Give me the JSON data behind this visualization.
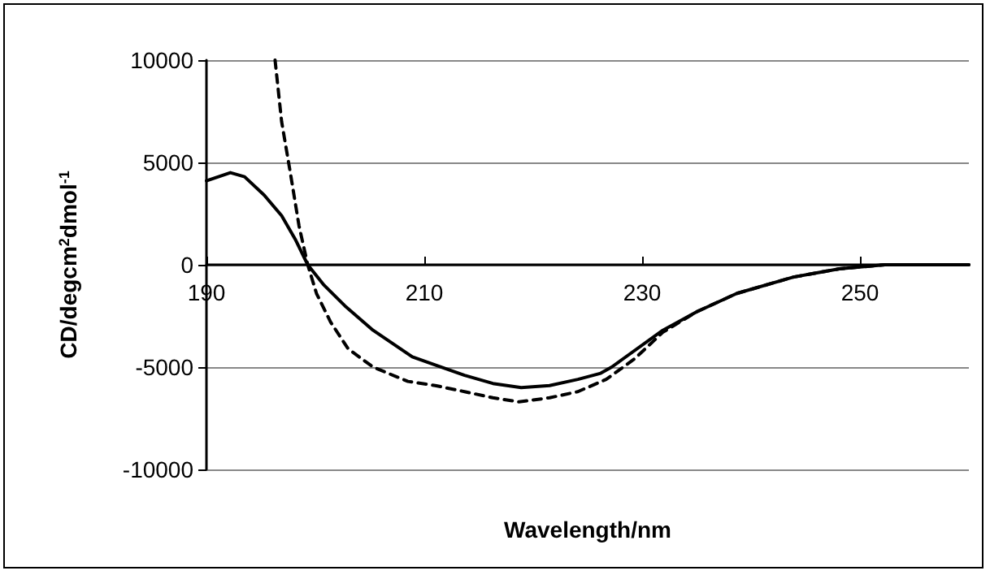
{
  "chart_data": {
    "type": "line",
    "xlabel": "Wavelength/nm",
    "ylabel": "CD/degcm$^{2}$dmol$^{-1}$",
    "xlim": [
      190,
      260
    ],
    "xticks": [
      190,
      210,
      230,
      250
    ],
    "ylim": [
      -10000,
      10000
    ],
    "yticks": [
      -10000,
      -5000,
      0,
      5000,
      10000
    ],
    "grid": "y",
    "marker": "none",
    "series": [
      {
        "color": "#000000",
        "line_style": "solid",
        "x": [
          190,
          192.2,
          193.5,
          195.3,
          196.9,
          198.2,
          199.3,
          200.8,
          202.7,
          205.3,
          208.9,
          211,
          213.7,
          216.3,
          218.9,
          221.5,
          224.1,
          226.2,
          227.2,
          231.9,
          235,
          238.7,
          243.9,
          248.1,
          252.3,
          260
        ],
        "values": [
          4100,
          4500,
          4300,
          3400,
          2400,
          1200,
          0,
          -1000,
          -2000,
          -3200,
          -4500,
          -4900,
          -5400,
          -5800,
          -6000,
          -5900,
          -5600,
          -5300,
          -5000,
          -3200,
          -2300,
          -1400,
          -600,
          -200,
          0,
          0
        ]
      },
      {
        "color": "#000000",
        "line_style": "dashed",
        "x": [
          196.3,
          196.9,
          197.7,
          198.5,
          199.3,
          200.1,
          201.4,
          203,
          205.3,
          208.5,
          211,
          213.7,
          216.3,
          218.7,
          221.5,
          224.1,
          226.7,
          229.3,
          231.9,
          235,
          238.7,
          243.9,
          248.1,
          252.3,
          260
        ],
        "values": [
          10000,
          7000,
          4500,
          1900,
          0,
          -1400,
          -2800,
          -4100,
          -5000,
          -5700,
          -5900,
          -6200,
          -6500,
          -6700,
          -6500,
          -6200,
          -5600,
          -4600,
          -3300,
          -2300,
          -1400,
          -600,
          -200,
          0,
          0
        ]
      }
    ]
  }
}
